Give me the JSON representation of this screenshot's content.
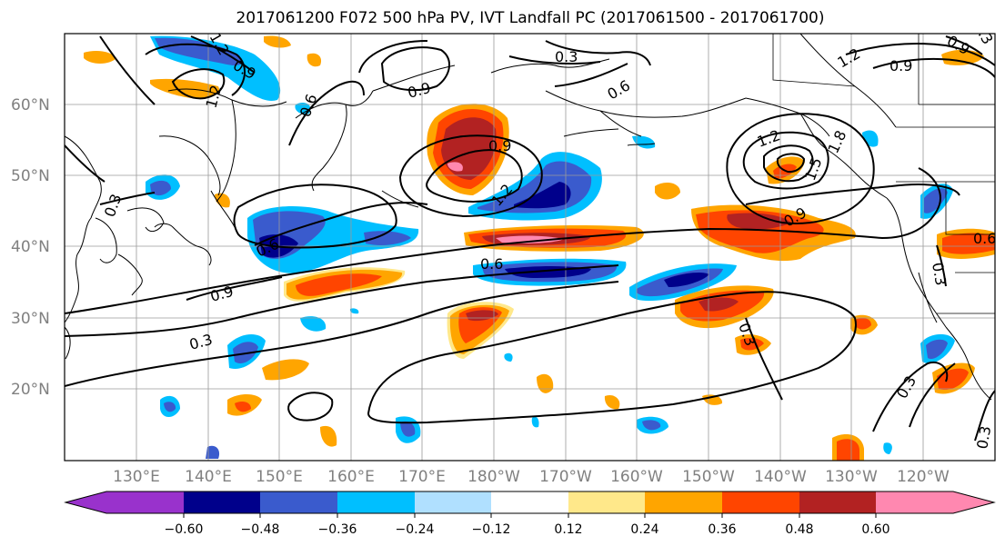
{
  "title": "2017061200 F072 500 hPa PV, IVT Landfall PC (2017061500 - 2017061700)",
  "lat_labels": [
    "60°N",
    "50°N",
    "40°N",
    "30°N",
    "20°N"
  ],
  "lon_labels": [
    "130°E",
    "140°E",
    "150°E",
    "160°E",
    "170°E",
    "180°W",
    "170°W",
    "160°W",
    "150°W",
    "140°W",
    "130°W",
    "120°W"
  ],
  "colorbar": {
    "ticks": [
      "−0.60",
      "−0.48",
      "−0.36",
      "−0.24",
      "−0.12",
      "0.12",
      "0.24",
      "0.36",
      "0.48",
      "0.60"
    ],
    "colors": [
      "#9932cc",
      "#00008b",
      "#3a5bcd",
      "#00bfff",
      "#b0e0ff",
      "#ffffff",
      "#ffe88a",
      "#ffa500",
      "#ff4500",
      "#b22222",
      "#ff88b0"
    ]
  },
  "contour_labels": [
    "0.9",
    "0.3",
    "0.6",
    "0.9",
    "0.3",
    "0.6",
    "1.2",
    "0.9",
    "1.2",
    "0.6",
    "0.9",
    "1.2",
    "1.5",
    "1.8",
    "0.9",
    "0.3",
    "0.3",
    "0.3",
    "0.6",
    "0.3",
    "0.3",
    "0.6",
    "0.9",
    "0.3",
    "1.2",
    "0.9",
    "1.2"
  ]
}
